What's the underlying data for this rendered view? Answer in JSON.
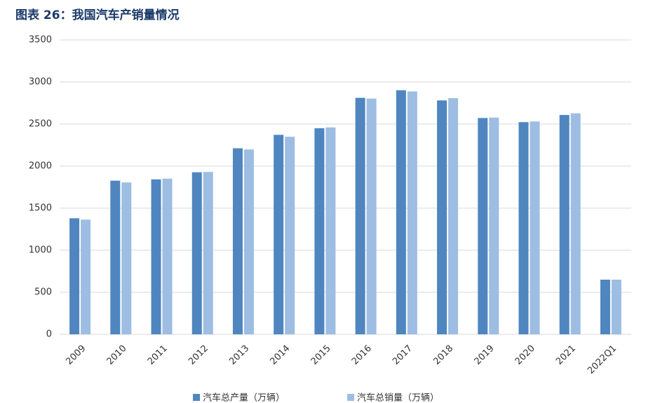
{
  "chart_data": {
    "type": "bar",
    "title": "图表 26：我国汽车产销量情况",
    "categories": [
      "2009",
      "2010",
      "2011",
      "2012",
      "2013",
      "2014",
      "2015",
      "2016",
      "2017",
      "2018",
      "2019",
      "2020",
      "2021",
      "2022Q1"
    ],
    "series": [
      {
        "name": "汽车总产量（万辆）",
        "color": "#4f86c0",
        "values": [
          1380,
          1827,
          1842,
          1927,
          2212,
          2372,
          2450,
          2812,
          2902,
          2781,
          2572,
          2523,
          2608,
          650
        ]
      },
      {
        "name": "汽车总销量（万辆）",
        "color": "#9dbde3",
        "values": [
          1364,
          1806,
          1851,
          1931,
          2198,
          2349,
          2460,
          2803,
          2888,
          2808,
          2577,
          2531,
          2628,
          650
        ]
      }
    ],
    "ylim": [
      0,
      3500
    ],
    "yticks": [
      0,
      500,
      1000,
      1500,
      2000,
      2500,
      3000,
      3500
    ],
    "grid": true
  }
}
